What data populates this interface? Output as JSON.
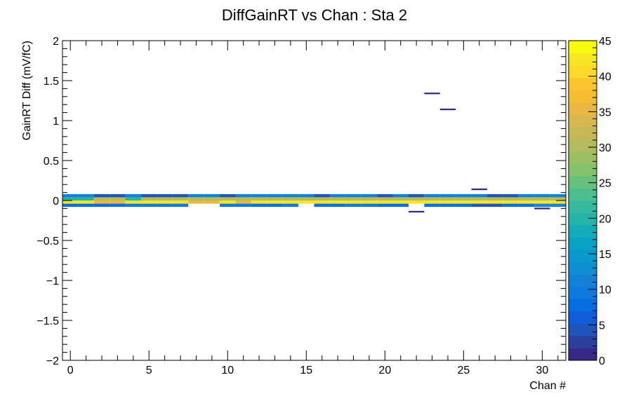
{
  "chart_data": {
    "type": "heatmap",
    "title": "DiffGainRT vs Chan : Sta 2",
    "xlabel": "Chan #",
    "ylabel": "GainRT Diff (mV/fC)",
    "xlim": [
      -0.5,
      31.5
    ],
    "ylim": [
      -2,
      2
    ],
    "x_ticks": [
      0,
      5,
      10,
      15,
      20,
      25,
      30
    ],
    "y_ticks": [
      -2,
      -1.5,
      -1,
      -0.5,
      0,
      0.5,
      1,
      1.5,
      2
    ],
    "x_tick_labels": [
      "0",
      "5",
      "10",
      "15",
      "20",
      "25",
      "30"
    ],
    "y_tick_labels": [
      "−2",
      "−1.5",
      "−1",
      "−0.5",
      "0",
      "0.5",
      "1",
      "1.5",
      "2"
    ],
    "y_bin_width": 0.04,
    "z_range": [
      0,
      45
    ],
    "colorbar_ticks": [
      0,
      5,
      10,
      15,
      20,
      25,
      30,
      35,
      40,
      45
    ],
    "colorbar_tick_labels": [
      "0",
      "5",
      "10",
      "15",
      "20",
      "25",
      "30",
      "35",
      "40",
      "45"
    ],
    "grid": false,
    "legend": "colorbar-right",
    "palette": [
      "#352a87",
      "#2a3f9e",
      "#1f54bb",
      "#0f5cdd",
      "#066ee0",
      "#1079dd",
      "#1481d6",
      "#0f8ed3",
      "#0899ce",
      "#08a2c5",
      "#15abb9",
      "#24b3ab",
      "#35ba9d",
      "#4cbe8e",
      "#67c17c",
      "#84c36c",
      "#9cbf63",
      "#b3bb5c",
      "#c6b857",
      "#d8b751",
      "#ebb743",
      "#f6bd32",
      "#fbc62d",
      "#fcd828",
      "#f8e622",
      "#f9fb0e"
    ],
    "rows": [
      {
        "y": 0.06,
        "values": [
          12,
          12,
          5,
          5,
          12,
          5,
          5,
          5,
          12,
          12,
          5,
          12,
          12,
          12,
          12,
          12,
          5,
          12,
          12,
          12,
          5,
          12,
          5,
          12,
          12,
          12,
          12,
          5,
          5,
          12,
          12,
          12
        ]
      },
      {
        "y": 0.02,
        "values": [
          20,
          20,
          30,
          30,
          20,
          30,
          30,
          30,
          30,
          30,
          30,
          30,
          30,
          30,
          30,
          30,
          30,
          30,
          30,
          30,
          30,
          30,
          30,
          30,
          30,
          30,
          30,
          30,
          30,
          30,
          30,
          30
        ]
      },
      {
        "y": -0.02,
        "values": [
          42,
          42,
          36,
          36,
          42,
          42,
          42,
          42,
          36,
          36,
          42,
          36,
          42,
          42,
          42,
          42,
          42,
          42,
          42,
          42,
          42,
          42,
          42,
          42,
          42,
          42,
          42,
          42,
          42,
          42,
          42,
          42
        ]
      },
      {
        "y": -0.06,
        "values": [
          8,
          8,
          8,
          8,
          10,
          10,
          10,
          10,
          0,
          0,
          10,
          10,
          8,
          8,
          10,
          0,
          8,
          8,
          10,
          10,
          8,
          8,
          0,
          8,
          8,
          8,
          5,
          5,
          8,
          8,
          12,
          12
        ]
      }
    ],
    "outliers": [
      {
        "x": 22,
        "y": -0.14,
        "value": 1
      },
      {
        "x": 23,
        "y": 1.34,
        "value": 1
      },
      {
        "x": 24,
        "y": 1.14,
        "value": 1
      },
      {
        "x": 26,
        "y": 0.14,
        "value": 1
      },
      {
        "x": 30,
        "y": -0.1,
        "value": 1
      }
    ]
  }
}
